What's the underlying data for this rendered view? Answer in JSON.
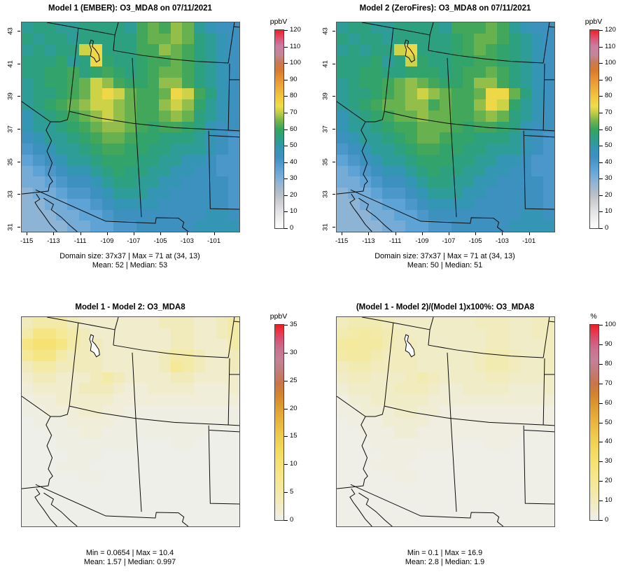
{
  "chart_data": [
    {
      "type": "heatmap",
      "title": "Model 1 (EMBER): O3_MDA8 on 07/11/2021",
      "scale": "conc",
      "colorbar": {
        "label": "ppbV",
        "range": [
          0,
          120
        ],
        "ticks": [
          0,
          10,
          20,
          30,
          40,
          50,
          60,
          70,
          80,
          90,
          100,
          110,
          120
        ]
      },
      "x_ticks": [
        "-115",
        "-113",
        "-111",
        "-109",
        "-107",
        "-105",
        "-103",
        "-101"
      ],
      "y_ticks": [
        "43",
        "41",
        "39",
        "37",
        "35",
        "33",
        "31"
      ],
      "stats_line1": "Domain size: 37x37 | Max = 71 at (34, 13)",
      "stats_line2": "Mean: 52 | Median: 53",
      "grid_size": "37x37",
      "max": 71,
      "max_at": "(34, 13)",
      "mean": 52,
      "median": 53,
      "lake_fill": "none",
      "grid": [
        "ghhgghhhhgjkjlkgfee",
        "hghhghhhhhjkklkhgfe",
        "ghghhmnhhhjjlkjhgfe",
        "hhhighnihhijjkjhgfe",
        "hhiijhijihijkkjhgfe",
        "ghiijkmljiijlljhgfe",
        "ghhijkmnmkjjknmjhfe",
        "ghijklmmlkjjlmligfe",
        "fghijklmlkjjklkhgfe",
        "fgghijkllkjijjihfee",
        "efgghijkkjiihhhgfed",
        "defgghijjiihhgggfed",
        "cdefgghiiihhggffedd",
        "bcdeffghihhggffeedd",
        "bbcdeefghhggffeeeed",
        "abbcddefgggffeeeeed",
        "aabbccdeffffeeeeeed",
        "aaabbccdeeeeeeeeffe",
        "aaaabbccddeeeeeffff"
      ]
    },
    {
      "type": "heatmap",
      "title": "Model 2 (ZeroFires): O3_MDA8 on 07/11/2021",
      "scale": "conc",
      "colorbar": {
        "label": "ppbV",
        "range": [
          0,
          120
        ],
        "ticks": [
          0,
          10,
          20,
          30,
          40,
          50,
          60,
          70,
          80,
          90,
          100,
          110,
          120
        ]
      },
      "x_ticks": [
        "-115",
        "-113",
        "-111",
        "-109",
        "-107",
        "-105",
        "-103",
        "-101"
      ],
      "y_ticks": [
        "43",
        "41",
        "39",
        "37",
        "35",
        "33",
        "31"
      ],
      "stats_line1": "Domain size: 37x37 | Max = 71 at (34, 13)",
      "stats_line2": "Mean: 50 | Median: 51",
      "grid_size": "37x37",
      "max": 71,
      "max_at": "(34, 13)",
      "mean": 50,
      "median": 51,
      "lake_fill": "none",
      "grid": [
        "ghhgghhhhgjjjkjgfee",
        "hghhghhhhhijkkjhgfe",
        "ghghhmnhhhijkjihgfe",
        "hhhighmihhiijjihgfe",
        "hhiihhiiihijjkjhgfe",
        "ghiijklkjiijlljhgfe",
        "ghhijklmlkjjknnkhfe",
        "ghijkklljkjjlnmigfe",
        "fghijkklkkjjklkhgfe",
        "fgghijjkkkjijjihfee",
        "efgghijkkjiihhhgfed",
        "defgghijjiihhgggfed",
        "cdefgghiiihhggffedd",
        "bcdeffghihhggffeedd",
        "bbcdeefghhggffeeeed",
        "abbcddefgggffeeeeed",
        "aabbccdeffffeeeeeed",
        "aaabbccdeeeeeeeeffe",
        "aaaabbccddeeeeeffff"
      ]
    },
    {
      "type": "heatmap",
      "title": "Model 1 - Model 2: O3_MDA8",
      "scale": "diff",
      "colorbar": {
        "label": "ppbV",
        "range": [
          0,
          35
        ],
        "ticks": [
          0,
          5,
          10,
          15,
          20,
          25,
          30,
          35
        ]
      },
      "x_ticks": [],
      "y_ticks": [],
      "stats_line1": "Min = 0.0654 | Max = 10.4",
      "stats_line2": "Mean: 1.57 |  Median: 0.997",
      "min": 0.0654,
      "max": 10.4,
      "mean": 1.57,
      "median": 0.997,
      "lake_fill": "#ffffff",
      "grid": [
        "tuuutssssssstttsstu",
        "uwwvutsssssssttsstu",
        "wxxwuttssssssttsssu",
        "vwwutttssssstuutsst",
        "tuuttttssssstvutsst",
        "sttssstutssssttssss",
        "rsssstttsrrssssrrrs",
        "qrrsssssrrrrrrrrrrr",
        "qqrrrssrrqqqqqqqqqq",
        "pqqqrrrrqqqqqqqqqqq",
        "ppqqqrrqqqqqqqqqppp",
        "pppqqqqqqqpppqqpppp",
        "ppppqqqpppppppppppp",
        "pppqqqppppppppppppp",
        "pppppqqpppppppppppp",
        "ppppppppppppppppppp",
        "ppppppppppppppppppp",
        "ppppppppppppppppppp",
        "ppppppppppppppppppp"
      ]
    },
    {
      "type": "heatmap",
      "title": "(Model 1 - Model 2)/(Model 1)x100%: O3_MDA8",
      "scale": "pct",
      "colorbar": {
        "label": "%",
        "range": [
          0,
          100
        ],
        "ticks": [
          0,
          10,
          20,
          30,
          40,
          50,
          60,
          70,
          80,
          90,
          100
        ]
      },
      "x_ticks": [],
      "y_ticks": [],
      "stats_line1": "Min = 0.1 | Max = 16.9",
      "stats_line2": "Mean: 2.8 |  Median: 1.9",
      "min": 0.1,
      "max": 16.9,
      "mean": 2.8,
      "median": 1.9,
      "lake_fill": "#ffffff",
      "grid": [
        "tuuutssssssstttsstt",
        "uvwvutsssssssttsstt",
        "wxwwuttssssssttssst",
        "vwwutttssssstuutsst",
        "tuuttttssssstuutsst",
        "sttssstutssssttssss",
        "rsssstttsrrssssrrrs",
        "qrrsssssrrrrrrrrrrr",
        "qqrrrssrrqqqqqqqqqq",
        "pqqqrrrrqqqqqqqqqqq",
        "ppqqqrrqqqqqqqqqppp",
        "pppqqqqqqqpppqqpppp",
        "ppppqqqpppppppppppp",
        "pppqqqppppppppppppp",
        "pppppqqpppppppppppp",
        "ppppppppppppppppppp",
        "ppppppppppppppppppp",
        "ppppppppppppppppppp",
        "ppppppppppppppppppp"
      ]
    }
  ],
  "levels": {
    "conc": {
      "a": 28,
      "b": 32,
      "c": 36,
      "d": 40,
      "e": 44,
      "f": 48,
      "g": 52,
      "h": 55,
      "i": 58,
      "j": 61,
      "k": 64,
      "l": 67,
      "m": 71,
      "n": 75
    },
    "diff": {
      "p": 0.2,
      "q": 0.6,
      "r": 1.2,
      "s": 2.0,
      "t": 3.2,
      "u": 4.8,
      "v": 6.5,
      "w": 8.5,
      "x": 10.2
    },
    "pct": {
      "p": 0.8,
      "q": 2.0,
      "r": 4.0,
      "s": 6.5,
      "t": 9.0,
      "u": 11.5,
      "v": 13.5,
      "w": 15.5,
      "x": 16.8
    }
  },
  "scales": {
    "conc": {
      "domain": [
        0,
        120
      ],
      "stops": [
        [
          0,
          "#ffffff"
        ],
        [
          0.08,
          "#e4e4e4"
        ],
        [
          0.17,
          "#babfc6"
        ],
        [
          0.23,
          "#8fb4d5"
        ],
        [
          0.29,
          "#62a6d8"
        ],
        [
          0.355,
          "#3f90c3"
        ],
        [
          0.4,
          "#3595b5"
        ],
        [
          0.435,
          "#2e9c96"
        ],
        [
          0.46,
          "#2da17d"
        ],
        [
          0.5,
          "#36a45e"
        ],
        [
          0.545,
          "#79b64a"
        ],
        [
          0.585,
          "#c3cf46"
        ],
        [
          0.615,
          "#eedd4a"
        ],
        [
          0.67,
          "#f1c33e"
        ],
        [
          0.75,
          "#e89433"
        ],
        [
          0.795,
          "#da7b2b"
        ],
        [
          0.835,
          "#c97a52"
        ],
        [
          0.875,
          "#c28698"
        ],
        [
          0.92,
          "#cb7da0"
        ],
        [
          0.955,
          "#dc5578"
        ],
        [
          1,
          "#ee2224"
        ]
      ]
    },
    "diff": {
      "domain": [
        0,
        35
      ],
      "stops": [
        [
          0,
          "#efefec"
        ],
        [
          0.06,
          "#f0ecca"
        ],
        [
          0.14,
          "#f3eaa6"
        ],
        [
          0.22,
          "#f6e78b"
        ],
        [
          0.29,
          "#f6e272"
        ],
        [
          0.37,
          "#f3d75b"
        ],
        [
          0.44,
          "#eec84a"
        ],
        [
          0.52,
          "#e7af3b"
        ],
        [
          0.58,
          "#df9c31"
        ],
        [
          0.64,
          "#d4842d"
        ],
        [
          0.7,
          "#c9744a"
        ],
        [
          0.76,
          "#c47b78"
        ],
        [
          0.82,
          "#c48098"
        ],
        [
          0.87,
          "#c97292"
        ],
        [
          0.92,
          "#d65577"
        ],
        [
          0.96,
          "#e63a4e"
        ],
        [
          1,
          "#ee1c24"
        ]
      ]
    },
    "pct": {
      "domain": [
        0,
        100
      ],
      "stops": [
        [
          0,
          "#efefec"
        ],
        [
          0.06,
          "#f0ecca"
        ],
        [
          0.14,
          "#f3eaa6"
        ],
        [
          0.22,
          "#f6e78b"
        ],
        [
          0.29,
          "#f6e272"
        ],
        [
          0.37,
          "#f3d75b"
        ],
        [
          0.44,
          "#eec84a"
        ],
        [
          0.52,
          "#e7af3b"
        ],
        [
          0.58,
          "#df9c31"
        ],
        [
          0.64,
          "#d4842d"
        ],
        [
          0.7,
          "#c9744a"
        ],
        [
          0.76,
          "#c47b78"
        ],
        [
          0.82,
          "#c48098"
        ],
        [
          0.87,
          "#c97292"
        ],
        [
          0.92,
          "#d65577"
        ],
        [
          0.96,
          "#e63a4e"
        ],
        [
          1,
          "#ee1c24"
        ]
      ]
    }
  },
  "axes": {
    "x_fracs": [
      2.3,
      14.6,
      26.9,
      39.2,
      51.4,
      63.7,
      76.0,
      88.3
    ],
    "y_fracs": [
      4.0,
      19.6,
      35.2,
      50.9,
      66.5,
      82.1,
      97.7
    ]
  },
  "geo": {
    "borders": [
      [
        [
          11.6,
          0
        ],
        [
          26,
          2.7
        ],
        [
          42.8,
          6
        ]
      ],
      [
        [
          42.8,
          6
        ],
        [
          44.4,
          0
        ]
      ],
      [
        [
          42.8,
          6
        ],
        [
          42.1,
          13.4
        ]
      ],
      [
        [
          42.1,
          13.4
        ],
        [
          55,
          15.7
        ],
        [
          67.5,
          17.4
        ],
        [
          80,
          18.6
        ],
        [
          94.9,
          19.4
        ]
      ],
      [
        [
          94.9,
          19.4
        ],
        [
          97.7,
          0
        ]
      ],
      [
        [
          95.5,
          19.7
        ],
        [
          94.9,
          51.5
        ]
      ],
      [
        [
          95.2,
          27.4
        ],
        [
          100,
          27.4
        ]
      ],
      [
        [
          97.4,
          2.0
        ],
        [
          100,
          2.3
        ]
      ],
      [
        [
          26,
          2.7
        ],
        [
          21.9,
          42.5
        ]
      ],
      [
        [
          21.9,
          42.5
        ],
        [
          35,
          45.6
        ],
        [
          51.5,
          48.3
        ],
        [
          70,
          50.3
        ],
        [
          94.9,
          51.5
        ],
        [
          100,
          51.8
        ]
      ],
      [
        [
          50.8,
          17.0
        ],
        [
          52.4,
          48.3
        ],
        [
          55.0,
          93.0
        ]
      ],
      [
        [
          85.9,
          51.8
        ],
        [
          86.6,
          89.0
        ],
        [
          100,
          89.3
        ]
      ],
      [
        [
          86.2,
          54.0
        ],
        [
          100,
          54.8
        ]
      ],
      [
        [
          6.4,
          80.0
        ],
        [
          38.6,
          95.0
        ],
        [
          61.4,
          96.0
        ],
        [
          61.8,
          93.3
        ],
        [
          72.0,
          93.5
        ],
        [
          74.5,
          95.5
        ],
        [
          73.8,
          97.8
        ],
        [
          76.5,
          100
        ]
      ],
      [
        [
          0,
          37.8
        ],
        [
          13.2,
          47.5
        ],
        [
          11.2,
          51.5
        ],
        [
          13.7,
          56.5
        ],
        [
          11.6,
          61.5
        ],
        [
          14.0,
          67.2
        ],
        [
          12.2,
          72.6
        ],
        [
          14.2,
          76.0
        ],
        [
          12.8,
          77.5
        ],
        [
          12.2,
          80.6
        ],
        [
          0,
          82.0
        ]
      ],
      [
        [
          21.9,
          42.5
        ],
        [
          21.0,
          46.5
        ],
        [
          17.7,
          47.5
        ],
        [
          13.2,
          47.5
        ]
      ],
      [
        [
          6.7,
          82.0
        ],
        [
          8.3,
          84.5
        ],
        [
          6.1,
          86.0
        ],
        [
          7.6,
          88.5
        ],
        [
          10.1,
          92.0
        ],
        [
          13.1,
          96.5
        ],
        [
          16.2,
          100
        ]
      ],
      [
        [
          10.1,
          84.0
        ],
        [
          14.6,
          87.0
        ],
        [
          13.6,
          89.5
        ],
        [
          18.1,
          93.0
        ],
        [
          22.1,
          97.0
        ],
        [
          25.5,
          100
        ]
      ]
    ],
    "lake": [
      [
        31.8,
        8.4
      ],
      [
        33.0,
        9.0
      ],
      [
        32.4,
        11.5
      ],
      [
        33.8,
        13.0
      ],
      [
        35.4,
        15.5
      ],
      [
        35.8,
        18.0
      ],
      [
        34.3,
        19.0
      ],
      [
        33.2,
        17.0
      ],
      [
        31.6,
        16.0
      ],
      [
        32.0,
        13.0
      ],
      [
        31.2,
        10.5
      ]
    ]
  }
}
